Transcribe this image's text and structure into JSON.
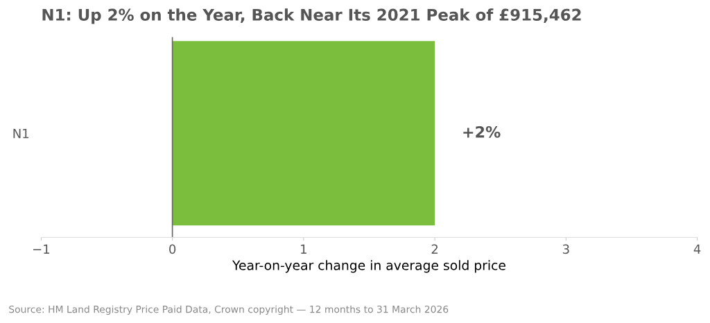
{
  "chart_data": {
    "type": "bar",
    "orientation": "horizontal",
    "title": "N1: Up 2% on the Year, Back Near Its 2021 Peak of £915,462",
    "xlabel": "Year-on-year change in average sold price",
    "categories": [
      "N1"
    ],
    "series": [
      {
        "color": "#7bbe3d",
        "values": [
          2
        ],
        "value_labels": [
          "+2%"
        ]
      }
    ],
    "xlim": [
      -1,
      4
    ],
    "xticks": [
      {
        "value": -1,
        "label": "−1"
      },
      0,
      1,
      2,
      3,
      4
    ],
    "ref_lines": [
      {
        "axis": "x",
        "value": 0,
        "color": "#666666"
      }
    ],
    "grid": false,
    "legend": false,
    "annotations": [
      "Source: HM Land Registry Price Paid Data, Crown copyright — 12 months to 31 March 2026"
    ]
  }
}
